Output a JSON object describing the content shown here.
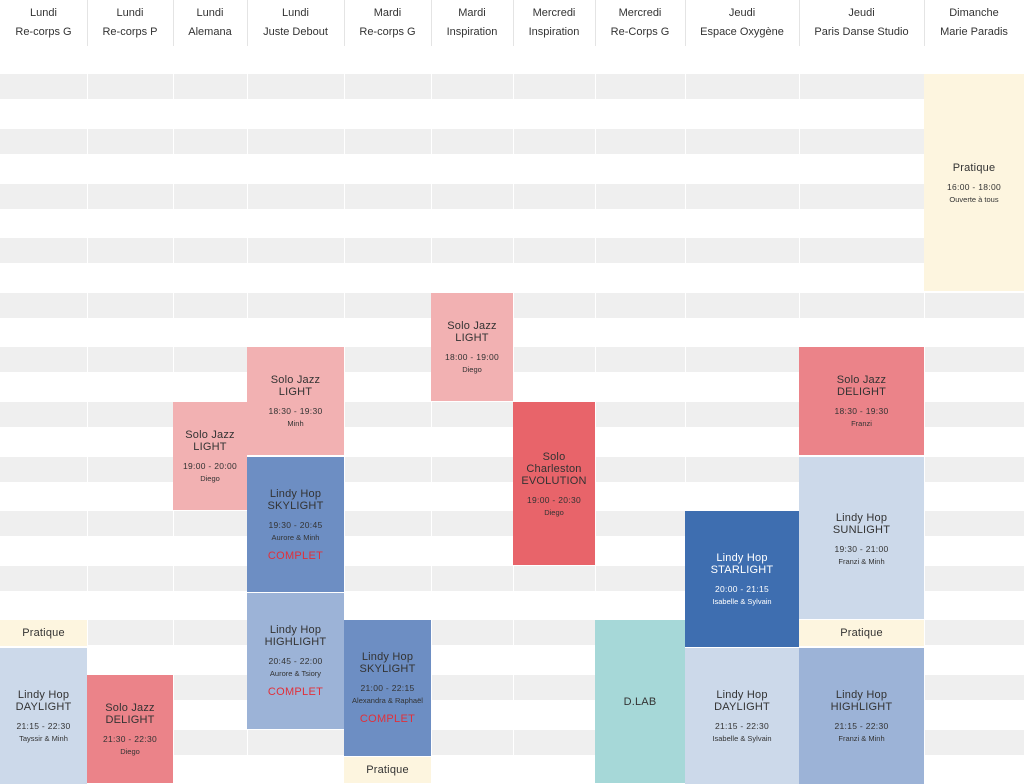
{
  "columns": [
    {
      "day": "Lundi",
      "studio": "Re-corps G"
    },
    {
      "day": "Lundi",
      "studio": "Re-corps P"
    },
    {
      "day": "Lundi",
      "studio": "Alemana"
    },
    {
      "day": "Lundi",
      "studio": "Juste Debout"
    },
    {
      "day": "Mardi",
      "studio": "Re-corps G"
    },
    {
      "day": "Mardi",
      "studio": "Inspiration"
    },
    {
      "day": "Mercredi",
      "studio": "Inspiration"
    },
    {
      "day": "Mercredi",
      "studio": "Re-Corps G"
    },
    {
      "day": "Jeudi",
      "studio": "Espace Oxygène"
    },
    {
      "day": "Jeudi",
      "studio": "Paris Danse Studio"
    },
    {
      "day": "Dimanche",
      "studio": "Marie Paradis"
    }
  ],
  "events": [
    {
      "col": 10,
      "start": "16:00",
      "end": "18:00",
      "lines": [
        "Pratique"
      ],
      "time": "16:00 - 18:00",
      "teachers": "Ouverte à tous",
      "status": "",
      "color": "#fdf5df"
    },
    {
      "col": 5,
      "start": "18:00",
      "end": "19:00",
      "lines": [
        "Solo Jazz",
        "LIGHT"
      ],
      "time": "18:00 - 19:00",
      "teachers": "Diego",
      "status": "",
      "color": "#f2b1b2"
    },
    {
      "col": 3,
      "start": "18:30",
      "end": "19:30",
      "lines": [
        "Solo Jazz",
        "LIGHT"
      ],
      "time": "18:30 - 19:30",
      "teachers": "Minh",
      "status": "",
      "color": "#f2b1b2"
    },
    {
      "col": 9,
      "start": "18:30",
      "end": "19:30",
      "lines": [
        "Solo Jazz",
        "DELIGHT"
      ],
      "time": "18:30 - 19:30",
      "teachers": "Franzi",
      "status": "",
      "color": "#eb8389"
    },
    {
      "col": 2,
      "start": "19:00",
      "end": "20:00",
      "lines": [
        "Solo Jazz",
        "LIGHT"
      ],
      "time": "19:00 - 20:00",
      "teachers": "Diego",
      "status": "",
      "color": "#f2b1b2"
    },
    {
      "col": 6,
      "start": "19:00",
      "end": "20:30",
      "lines": [
        "Solo",
        "Charleston",
        "EVOLUTION"
      ],
      "time": "19:00 - 20:30",
      "teachers": "Diego",
      "status": "",
      "color": "#e8646a"
    },
    {
      "col": 3,
      "start": "19:30",
      "end": "20:45",
      "lines": [
        "Lindy Hop",
        "SKYLIGHT"
      ],
      "time": "19:30 - 20:45",
      "teachers": "Aurore & Minh",
      "status": "COMPLET",
      "color": "#6d8ec3"
    },
    {
      "col": 9,
      "start": "19:30",
      "end": "21:00",
      "lines": [
        "Lindy Hop",
        "SUNLIGHT"
      ],
      "time": "19:30 - 21:00",
      "teachers": "Franzi & Minh",
      "status": "",
      "color": "#ccd9ea"
    },
    {
      "col": 8,
      "start": "20:00",
      "end": "21:15",
      "lines": [
        "Lindy Hop",
        "STARLIGHT"
      ],
      "time": "20:00 - 21:15",
      "teachers": "Isabelle & Sylvain",
      "status": "",
      "color": "#3e6eb0"
    },
    {
      "col": 3,
      "start": "20:45",
      "end": "22:00",
      "lines": [
        "Lindy Hop",
        "HIGHLIGHT"
      ],
      "time": "20:45 - 22:00",
      "teachers": "Aurore & Tsiory",
      "status": "COMPLET",
      "color": "#9cb3d7"
    },
    {
      "col": 0,
      "start": "21:00",
      "end": "21:15",
      "lines": [
        "Pratique"
      ],
      "time": "",
      "teachers": "",
      "status": "",
      "color": "#fdf5df"
    },
    {
      "col": 9,
      "start": "21:00",
      "end": "21:15",
      "lines": [
        "Pratique"
      ],
      "time": "",
      "teachers": "",
      "status": "",
      "color": "#fdf5df"
    },
    {
      "col": 4,
      "start": "21:00",
      "end": "22:15",
      "lines": [
        "Lindy Hop",
        "SKYLIGHT"
      ],
      "time": "21:00 - 22:15",
      "teachers": "Alexandra & Raphaël",
      "status": "COMPLET",
      "color": "#6d8ec3"
    },
    {
      "col": 7,
      "start": "21:00",
      "end": "22:30",
      "lines": [
        "D.LAB"
      ],
      "time": "",
      "teachers": "",
      "status": "",
      "color": "#a6d8d8"
    },
    {
      "col": 0,
      "start": "21:15",
      "end": "22:30",
      "lines": [
        "Lindy Hop",
        "DAYLIGHT"
      ],
      "time": "21:15 - 22:30",
      "teachers": "Tayssir & Minh",
      "status": "",
      "color": "#ccd9ea"
    },
    {
      "col": 8,
      "start": "21:15",
      "end": "22:30",
      "lines": [
        "Lindy Hop",
        "DAYLIGHT"
      ],
      "time": "21:15 - 22:30",
      "teachers": "Isabelle & Sylvain",
      "status": "",
      "color": "#ccd9ea"
    },
    {
      "col": 9,
      "start": "21:15",
      "end": "22:30",
      "lines": [
        "Lindy Hop",
        "HIGHLIGHT"
      ],
      "time": "21:15 - 22:30",
      "teachers": "Franzi & Minh",
      "status": "",
      "color": "#9cb3d7"
    },
    {
      "col": 1,
      "start": "21:30",
      "end": "22:30",
      "lines": [
        "Solo Jazz",
        "DELIGHT"
      ],
      "time": "21:30 - 22:30",
      "teachers": "Diego",
      "status": "",
      "color": "#eb8389"
    },
    {
      "col": 4,
      "start": "22:15",
      "end": "22:30",
      "lines": [
        "Pratique"
      ],
      "time": "",
      "teachers": "",
      "status": "",
      "color": "#fdf5df"
    }
  ]
}
